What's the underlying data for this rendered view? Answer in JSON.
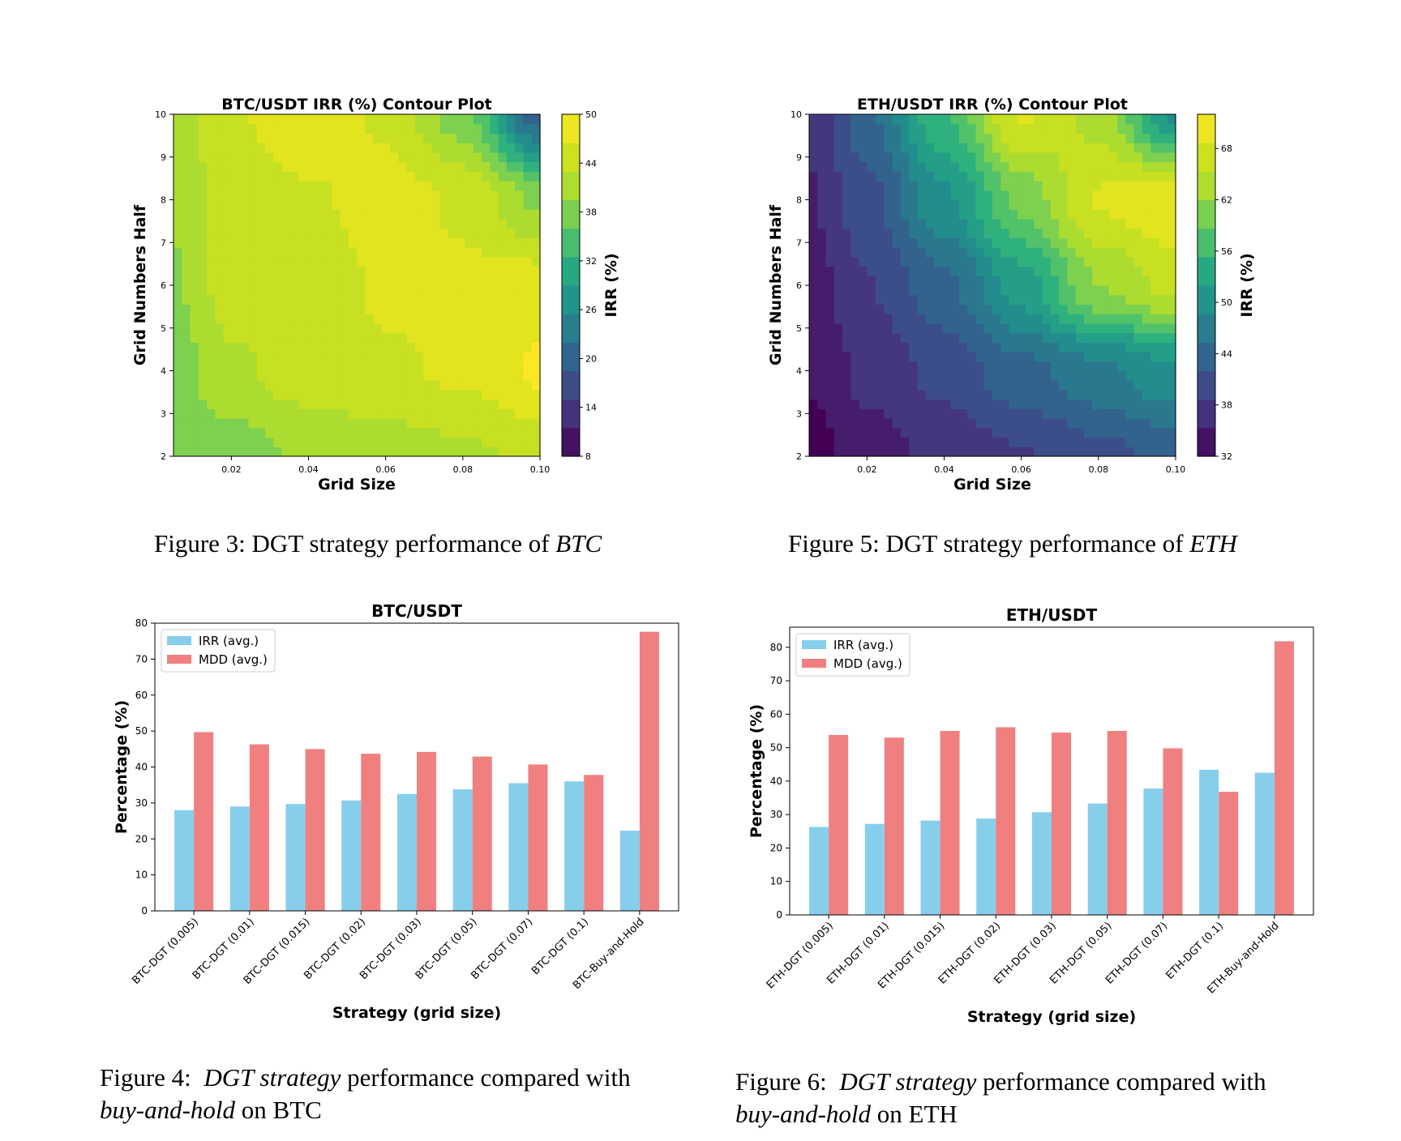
{
  "figures": {
    "fig3": {
      "prefix": "Figure 3: DGT strategy performance of ",
      "italic": "BTC"
    },
    "fig5": {
      "prefix": "Figure 5: DGT strategy performance of ",
      "italic": "ETH"
    },
    "fig4": {
      "prefix": "Figure 4:  ",
      "italic1": "DGT strategy",
      "middle": " performance compared with",
      "italic2": "buy-and-hold",
      "suffix": " on BTC"
    },
    "fig6": {
      "prefix": "Figure 6:  ",
      "italic1": "DGT strategy",
      "middle": " performance compared with",
      "italic2": "buy-and-hold",
      "suffix": " on ETH"
    }
  },
  "colors": {
    "irr": "#87ceeb",
    "mdd": "#f08080",
    "viridis": [
      "#440154",
      "#472c7a",
      "#3b518b",
      "#2c718e",
      "#21908d",
      "#27ad81",
      "#5cc863",
      "#aadc32",
      "#d2e21b",
      "#fde725"
    ]
  },
  "chart_data": [
    {
      "id": "btc-contour",
      "type": "heatmap",
      "title": "BTC/USDT IRR (%) Contour Plot",
      "xlabel": "Grid Size",
      "ylabel": "Grid Numbers Half",
      "colorbar_label": "IRR (%)",
      "xlim": [
        0.005,
        0.1
      ],
      "ylim": [
        2,
        10
      ],
      "xticks": [
        "0.02",
        "0.04",
        "0.06",
        "0.08",
        "0.10"
      ],
      "yticks": [
        "2",
        "3",
        "4",
        "5",
        "6",
        "7",
        "8",
        "9",
        "10"
      ],
      "cbar_range": [
        8,
        50
      ],
      "cbar_ticks": [
        "8",
        "14",
        "20",
        "26",
        "32",
        "38",
        "44",
        "50"
      ],
      "x": [
        0.005,
        0.02,
        0.04,
        0.06,
        0.08,
        0.1
      ],
      "y": [
        2,
        4,
        6,
        8,
        10
      ],
      "z": [
        [
          37,
          38,
          40,
          41,
          42,
          43
        ],
        [
          38,
          42,
          44,
          45,
          46,
          49
        ],
        [
          39,
          44,
          43,
          46,
          46,
          47
        ],
        [
          40,
          44,
          45,
          47,
          45,
          39
        ],
        [
          41,
          45,
          48,
          45,
          38,
          20
        ]
      ]
    },
    {
      "id": "eth-contour",
      "type": "heatmap",
      "title": "ETH/USDT IRR (%) Contour Plot",
      "xlabel": "Grid Size",
      "ylabel": "Grid Numbers Half",
      "colorbar_label": "IRR (%)",
      "xlim": [
        0.005,
        0.1
      ],
      "ylim": [
        2,
        10
      ],
      "xticks": [
        "0.02",
        "0.04",
        "0.06",
        "0.08",
        "0.10"
      ],
      "yticks": [
        "2",
        "3",
        "4",
        "5",
        "6",
        "7",
        "8",
        "9",
        "10"
      ],
      "cbar_range": [
        32,
        72
      ],
      "cbar_ticks": [
        "32",
        "38",
        "44",
        "50",
        "56",
        "62",
        "68"
      ],
      "x": [
        0.005,
        0.02,
        0.04,
        0.06,
        0.08,
        0.1
      ],
      "y": [
        2,
        4,
        6,
        8,
        10
      ],
      "z": [
        [
          32,
          35,
          37,
          39,
          41,
          43
        ],
        [
          34,
          37,
          40,
          44,
          47,
          50
        ],
        [
          35,
          39,
          44,
          52,
          62,
          66
        ],
        [
          36,
          41,
          50,
          60,
          68,
          70
        ],
        [
          37,
          44,
          56,
          68,
          64,
          50
        ]
      ]
    },
    {
      "id": "btc-bar",
      "type": "bar",
      "title": "BTC/USDT",
      "xlabel": "Strategy (grid size)",
      "ylabel": "Percentage (%)",
      "ylim": [
        0,
        80
      ],
      "yticks": [
        "0",
        "10",
        "20",
        "30",
        "40",
        "50",
        "60",
        "70",
        "80"
      ],
      "legend": "top-left",
      "categories": [
        "BTC-DGT (0.005)",
        "BTC-DGT (0.01)",
        "BTC-DGT (0.015)",
        "BTC-DGT (0.02)",
        "BTC-DGT (0.03)",
        "BTC-DGT (0.05)",
        "BTC-DGT (0.07)",
        "BTC-DGT (0.1)",
        "BTC-Buy-and-Hold"
      ],
      "series": [
        {
          "name": "IRR (avg.)",
          "values": [
            28,
            29,
            29.7,
            30.7,
            32.5,
            33.8,
            35.5,
            36,
            22.3
          ]
        },
        {
          "name": "MDD (avg.)",
          "values": [
            49.7,
            46.3,
            45,
            43.7,
            44.2,
            42.9,
            40.7,
            37.8,
            77.6
          ]
        }
      ]
    },
    {
      "id": "eth-bar",
      "type": "bar",
      "title": "ETH/USDT",
      "xlabel": "Strategy (grid size)",
      "ylabel": "Percentage (%)",
      "ylim": [
        0,
        86
      ],
      "yticks": [
        "0",
        "10",
        "20",
        "30",
        "40",
        "50",
        "60",
        "70",
        "80"
      ],
      "legend": "top-left",
      "categories": [
        "ETH-DGT (0.005)",
        "ETH-DGT (0.01)",
        "ETH-DGT (0.015)",
        "ETH-DGT (0.02)",
        "ETH-DGT (0.03)",
        "ETH-DGT (0.05)",
        "ETH-DGT (0.07)",
        "ETH-DGT (0.1)",
        "ETH-Buy-and-Hold"
      ],
      "series": [
        {
          "name": "IRR (avg.)",
          "values": [
            26.3,
            27.2,
            28.2,
            28.8,
            30.7,
            33.3,
            37.8,
            43.4,
            42.5
          ]
        },
        {
          "name": "MDD (avg.)",
          "values": [
            53.8,
            53,
            55,
            56.1,
            54.5,
            55,
            49.8,
            36.8,
            81.8
          ]
        }
      ]
    }
  ]
}
